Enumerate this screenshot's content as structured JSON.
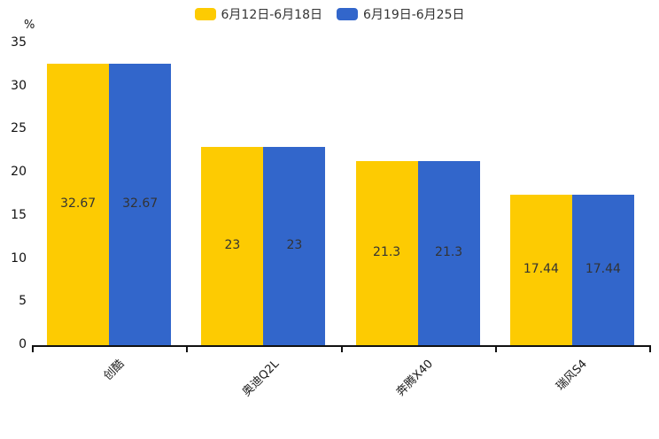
{
  "legend": {
    "items": [
      {
        "label": "6月12日-6月18日",
        "color": "#FDCB02"
      },
      {
        "label": "6月19日-6月25日",
        "color": "#3266CB"
      }
    ]
  },
  "y_axis": {
    "unit": "%",
    "ticks": [
      35,
      30,
      25,
      20,
      15,
      10,
      5,
      0
    ],
    "min": 0,
    "max": 35
  },
  "chart_data": {
    "type": "bar",
    "categories": [
      "创酷",
      "奥迪Q2L",
      "奔腾X40",
      "瑞风S4"
    ],
    "series": [
      {
        "name": "6月12日-6月18日",
        "color": "#FDCB02",
        "values": [
          32.67,
          23,
          21.3,
          17.44
        ]
      },
      {
        "name": "6月19日-6月25日",
        "color": "#3266CB",
        "values": [
          32.67,
          23,
          21.3,
          17.44
        ]
      }
    ],
    "title": "",
    "xlabel": "",
    "ylabel": "%",
    "ylim": [
      0,
      35
    ],
    "grid": false,
    "legend_position": "top",
    "bar_label_color": "#333333"
  }
}
